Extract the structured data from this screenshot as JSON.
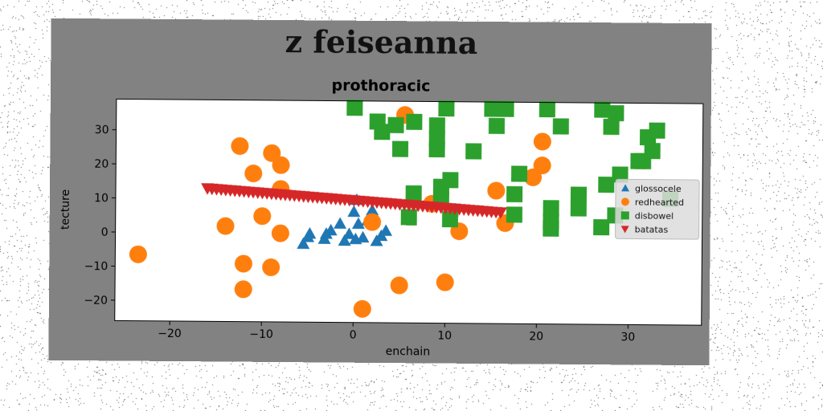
{
  "chart_data": {
    "type": "scatter",
    "title": "z feiseanna",
    "subtitle": "prothoracic",
    "xlabel": "enchain",
    "ylabel": "tecture",
    "xlim": [
      -26,
      38
    ],
    "ylim": [
      -26,
      39
    ],
    "xticks": [
      -20,
      -10,
      0,
      10,
      20,
      30
    ],
    "yticks": [
      -20,
      -10,
      0,
      10,
      20,
      30
    ],
    "xtick_labels": [
      "−20",
      "−10",
      "0",
      "10",
      "20",
      "30"
    ],
    "ytick_labels": [
      "−20",
      "−10",
      "0",
      "10",
      "20",
      "30"
    ],
    "grid": false,
    "legend_position": "right",
    "series": [
      {
        "name": "glossocele",
        "marker": "triangle-up",
        "color": "#1f77b4",
        "points": [
          [
            -5.5,
            -3
          ],
          [
            -5,
            -1
          ],
          [
            -4.8,
            0
          ],
          [
            -3.2,
            -1.5
          ],
          [
            -3,
            0
          ],
          [
            -2.5,
            1
          ],
          [
            -1.5,
            3
          ],
          [
            -1,
            -2
          ],
          [
            -0.5,
            0
          ],
          [
            0,
            6.5
          ],
          [
            0.2,
            -1.5
          ],
          [
            0.3,
            10
          ],
          [
            0.5,
            3
          ],
          [
            1,
            -1
          ],
          [
            1.5,
            4
          ],
          [
            2,
            7
          ],
          [
            2.5,
            -2
          ],
          [
            3,
            -0.5
          ],
          [
            3.5,
            1
          ]
        ]
      },
      {
        "name": "redhearted",
        "marker": "circle",
        "color": "#ff7f0e",
        "points": [
          [
            -23.5,
            -6.5
          ],
          [
            -14,
            2
          ],
          [
            -12.5,
            25.5
          ],
          [
            -12,
            -9
          ],
          [
            -12,
            -16.5
          ],
          [
            -11,
            17.5
          ],
          [
            -10,
            5
          ],
          [
            -9,
            23.5
          ],
          [
            -9,
            -10
          ],
          [
            -8,
            20
          ],
          [
            -8,
            13
          ],
          [
            -8,
            0
          ],
          [
            1,
            -22
          ],
          [
            2,
            3.5
          ],
          [
            5,
            -15
          ],
          [
            5.5,
            35
          ],
          [
            8.5,
            9
          ],
          [
            10,
            -14
          ],
          [
            11.5,
            1
          ],
          [
            15.5,
            13
          ],
          [
            16.5,
            3.5
          ],
          [
            19.5,
            17
          ],
          [
            20.5,
            20.5
          ],
          [
            20.5,
            27.5
          ]
        ]
      },
      {
        "name": "disbowel",
        "marker": "square",
        "color": "#2ca02c",
        "points": [
          [
            0,
            37
          ],
          [
            2.5,
            33
          ],
          [
            3,
            30
          ],
          [
            4.5,
            32
          ],
          [
            5,
            25
          ],
          [
            6,
            5
          ],
          [
            6.5,
            33
          ],
          [
            6.5,
            12
          ],
          [
            9,
            32
          ],
          [
            9,
            28
          ],
          [
            9,
            25
          ],
          [
            9.5,
            14
          ],
          [
            9.5,
            10
          ],
          [
            10,
            37
          ],
          [
            10.5,
            16
          ],
          [
            10.5,
            4.5
          ],
          [
            13,
            24.5
          ],
          [
            15,
            37
          ],
          [
            15.5,
            32
          ],
          [
            16.5,
            37
          ],
          [
            17.5,
            12
          ],
          [
            17.5,
            6
          ],
          [
            18,
            18
          ],
          [
            21,
            37
          ],
          [
            21.5,
            8
          ],
          [
            21.5,
            4
          ],
          [
            21.5,
            2
          ],
          [
            22.5,
            32
          ],
          [
            24.5,
            12
          ],
          [
            24.5,
            8
          ],
          [
            27,
            37
          ],
          [
            27,
            2.5
          ],
          [
            27.5,
            15
          ],
          [
            28,
            32
          ],
          [
            28.5,
            36
          ],
          [
            28.5,
            6
          ],
          [
            29,
            18
          ],
          [
            31,
            22
          ],
          [
            31.5,
            22
          ],
          [
            32,
            29
          ],
          [
            32.5,
            25
          ],
          [
            33,
            31
          ],
          [
            34.5,
            11
          ]
        ]
      },
      {
        "name": "batatas",
        "marker": "triangle-down",
        "color": "#d62728",
        "points": [
          [
            -16,
            13
          ],
          [
            -15,
            12.8
          ],
          [
            -14,
            12.6
          ],
          [
            -13,
            12.4
          ],
          [
            -12,
            12.2
          ],
          [
            -11,
            12
          ],
          [
            -10,
            11.8
          ],
          [
            -9,
            11.6
          ],
          [
            -8,
            11.4
          ],
          [
            -7,
            11.2
          ],
          [
            -6,
            11
          ],
          [
            -5,
            10.8
          ],
          [
            -4,
            10.6
          ],
          [
            -3,
            10.4
          ],
          [
            -2,
            10.2
          ],
          [
            -1,
            10
          ],
          [
            0,
            9.8
          ],
          [
            1,
            9.6
          ],
          [
            2,
            9.4
          ],
          [
            3,
            9.2
          ],
          [
            4,
            9
          ],
          [
            5,
            8.8
          ],
          [
            6,
            8.6
          ],
          [
            7,
            8.4
          ],
          [
            8,
            8.2
          ],
          [
            9,
            8
          ],
          [
            10,
            7.8
          ],
          [
            11,
            7.6
          ],
          [
            12,
            7.4
          ],
          [
            13,
            7.2
          ],
          [
            14,
            7
          ],
          [
            15,
            6.8
          ],
          [
            16,
            6.6
          ],
          [
            -15.5,
            12.9
          ],
          [
            -14.5,
            12.7
          ],
          [
            -13.5,
            12.5
          ],
          [
            -12.5,
            12.3
          ],
          [
            -11.5,
            12.1
          ],
          [
            -10.5,
            11.9
          ],
          [
            -9.5,
            11.7
          ],
          [
            -8.5,
            11.5
          ],
          [
            -7.5,
            11.3
          ],
          [
            -6.5,
            11.1
          ],
          [
            -5.5,
            10.9
          ],
          [
            -4.5,
            10.7
          ],
          [
            -3.5,
            10.5
          ],
          [
            -2.5,
            10.3
          ],
          [
            -1.5,
            10.1
          ],
          [
            -0.5,
            9.9
          ],
          [
            0.5,
            9.7
          ],
          [
            1.5,
            9.5
          ],
          [
            2.5,
            9.3
          ],
          [
            3.5,
            9.1
          ],
          [
            4.5,
            8.9
          ],
          [
            5.5,
            8.7
          ],
          [
            6.5,
            8.5
          ],
          [
            7.5,
            8.3
          ],
          [
            8.5,
            8.1
          ],
          [
            9.5,
            7.9
          ],
          [
            10.5,
            7.7
          ],
          [
            11.5,
            7.5
          ],
          [
            12.5,
            7.3
          ],
          [
            13.5,
            7.1
          ],
          [
            14.5,
            6.9
          ],
          [
            15.5,
            6.7
          ]
        ]
      }
    ]
  }
}
